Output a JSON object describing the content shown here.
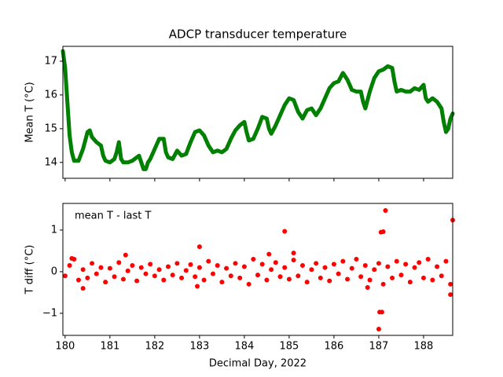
{
  "chart_data": [
    {
      "type": "line",
      "title": "ADCP transducer temperature",
      "ylabel": "Mean T (°C)",
      "color": "#008000",
      "x": [
        179.95,
        180.0,
        180.05,
        180.1,
        180.15,
        180.2,
        180.3,
        180.4,
        180.5,
        180.55,
        180.6,
        180.7,
        180.8,
        180.85,
        180.9,
        181.0,
        181.1,
        181.15,
        181.2,
        181.25,
        181.3,
        181.4,
        181.5,
        181.6,
        181.65,
        181.75,
        181.8,
        181.85,
        181.9,
        182.0,
        182.1,
        182.2,
        182.25,
        182.3,
        182.4,
        182.5,
        182.6,
        182.7,
        182.8,
        182.9,
        183.0,
        183.1,
        183.2,
        183.3,
        183.4,
        183.5,
        183.6,
        183.7,
        183.8,
        183.9,
        184.0,
        184.05,
        184.1,
        184.2,
        184.3,
        184.4,
        184.5,
        184.55,
        184.6,
        184.7,
        184.8,
        184.9,
        185.0,
        185.1,
        185.2,
        185.3,
        185.4,
        185.5,
        185.6,
        185.7,
        185.8,
        185.9,
        186.0,
        186.1,
        186.2,
        186.3,
        186.4,
        186.5,
        186.6,
        186.65,
        186.7,
        186.8,
        186.9,
        187.0,
        187.1,
        187.2,
        187.3,
        187.35,
        187.4,
        187.5,
        187.6,
        187.7,
        187.8,
        187.9,
        188.0,
        188.05,
        188.1,
        188.2,
        188.3,
        188.4,
        188.45,
        188.5,
        188.55,
        188.6,
        188.65
      ],
      "values": [
        17.3,
        16.8,
        15.8,
        14.8,
        14.3,
        14.05,
        14.05,
        14.4,
        14.9,
        14.95,
        14.75,
        14.6,
        14.5,
        14.2,
        14.05,
        14.0,
        14.1,
        14.3,
        14.6,
        14.1,
        14.0,
        14.0,
        14.05,
        14.15,
        14.2,
        13.8,
        13.8,
        14.0,
        14.1,
        14.4,
        14.7,
        14.7,
        14.3,
        14.15,
        14.1,
        14.35,
        14.2,
        14.25,
        14.6,
        14.9,
        14.95,
        14.8,
        14.5,
        14.3,
        14.35,
        14.3,
        14.4,
        14.7,
        14.95,
        15.1,
        15.2,
        14.9,
        14.65,
        14.7,
        15.0,
        15.35,
        15.3,
        15.0,
        14.85,
        15.1,
        15.4,
        15.7,
        15.9,
        15.85,
        15.5,
        15.3,
        15.55,
        15.6,
        15.4,
        15.6,
        15.9,
        16.2,
        16.35,
        16.4,
        16.65,
        16.45,
        16.15,
        16.1,
        16.1,
        15.8,
        15.6,
        16.1,
        16.5,
        16.7,
        16.75,
        16.85,
        16.8,
        16.4,
        16.1,
        16.15,
        16.1,
        16.1,
        16.2,
        16.15,
        16.3,
        15.9,
        15.8,
        15.9,
        15.8,
        15.6,
        15.2,
        14.9,
        15.0,
        15.3,
        15.45
      ],
      "xlim": [
        179.95,
        188.65
      ],
      "ylim": [
        13.53,
        17.44
      ],
      "xticks": [
        180,
        181,
        182,
        183,
        184,
        185,
        186,
        187,
        188
      ],
      "yticks": [
        14,
        15,
        16,
        17
      ]
    },
    {
      "type": "scatter",
      "ylabel": "T diff (°C)",
      "xlabel": "Decimal Day, 2022",
      "annotation": "mean T - last T",
      "color": "#ff0000",
      "x": [
        180.0,
        180.1,
        180.2,
        180.3,
        180.4,
        180.5,
        180.6,
        180.7,
        180.8,
        180.9,
        181.0,
        181.1,
        181.2,
        181.3,
        181.4,
        181.5,
        181.6,
        181.7,
        181.8,
        181.9,
        182.0,
        182.1,
        182.2,
        182.3,
        182.4,
        182.5,
        182.6,
        182.7,
        182.8,
        182.9,
        183.0,
        183.1,
        183.2,
        183.3,
        183.4,
        183.5,
        183.6,
        183.7,
        183.8,
        183.9,
        184.0,
        184.1,
        184.2,
        184.3,
        184.4,
        184.5,
        184.6,
        184.7,
        184.8,
        184.9,
        185.0,
        185.1,
        185.2,
        185.3,
        185.4,
        185.5,
        185.6,
        185.7,
        185.8,
        185.9,
        186.0,
        186.1,
        186.2,
        186.3,
        186.4,
        186.5,
        186.6,
        186.7,
        186.8,
        186.9,
        187.0,
        187.1,
        187.2,
        187.3,
        187.4,
        187.5,
        187.6,
        187.7,
        187.8,
        187.9,
        188.0,
        188.1,
        188.2,
        188.3,
        188.4,
        188.5,
        188.6,
        187.15,
        187.05,
        187.1,
        184.9,
        188.65,
        187.0,
        187.02,
        187.07,
        183.0,
        185.1,
        181.35,
        182.95,
        180.4,
        188.6,
        180.15,
        184.55,
        186.75
      ],
      "values": [
        -0.1,
        0.15,
        0.3,
        -0.2,
        0.05,
        -0.15,
        0.2,
        -0.05,
        0.1,
        -0.25,
        0.08,
        -0.12,
        0.22,
        -0.18,
        0.02,
        0.15,
        -0.22,
        0.1,
        -0.05,
        0.18,
        -0.1,
        0.05,
        -0.2,
        0.12,
        -0.08,
        0.2,
        -0.15,
        0.03,
        0.17,
        -0.12,
        0.1,
        -0.2,
        0.25,
        -0.05,
        0.15,
        -0.25,
        0.08,
        -0.1,
        0.2,
        -0.15,
        0.12,
        -0.3,
        0.3,
        -0.08,
        0.18,
        -0.2,
        0.05,
        0.22,
        -0.12,
        0.1,
        -0.18,
        0.28,
        -0.1,
        0.15,
        -0.25,
        0.05,
        0.2,
        -0.15,
        0.1,
        -0.22,
        0.18,
        -0.05,
        0.25,
        -0.18,
        0.08,
        0.3,
        -0.12,
        0.15,
        -0.2,
        0.05,
        0.2,
        -0.3,
        0.12,
        -0.15,
        0.25,
        -0.08,
        0.18,
        -0.25,
        0.1,
        0.22,
        -0.15,
        0.3,
        -0.2,
        0.12,
        -0.1,
        0.25,
        -0.3,
        1.47,
        0.95,
        0.96,
        0.97,
        1.24,
        -1.38,
        -0.97,
        -0.97,
        0.6,
        0.45,
        0.4,
        -0.35,
        -0.4,
        -0.55,
        0.32,
        0.42,
        -0.38
      ],
      "xlim": [
        179.95,
        188.65
      ],
      "ylim": [
        -1.53,
        1.64
      ],
      "xticks": [
        180,
        181,
        182,
        183,
        184,
        185,
        186,
        187,
        188
      ],
      "yticks": [
        {
          "value": -1,
          "label": "−1"
        },
        0,
        1
      ]
    }
  ]
}
